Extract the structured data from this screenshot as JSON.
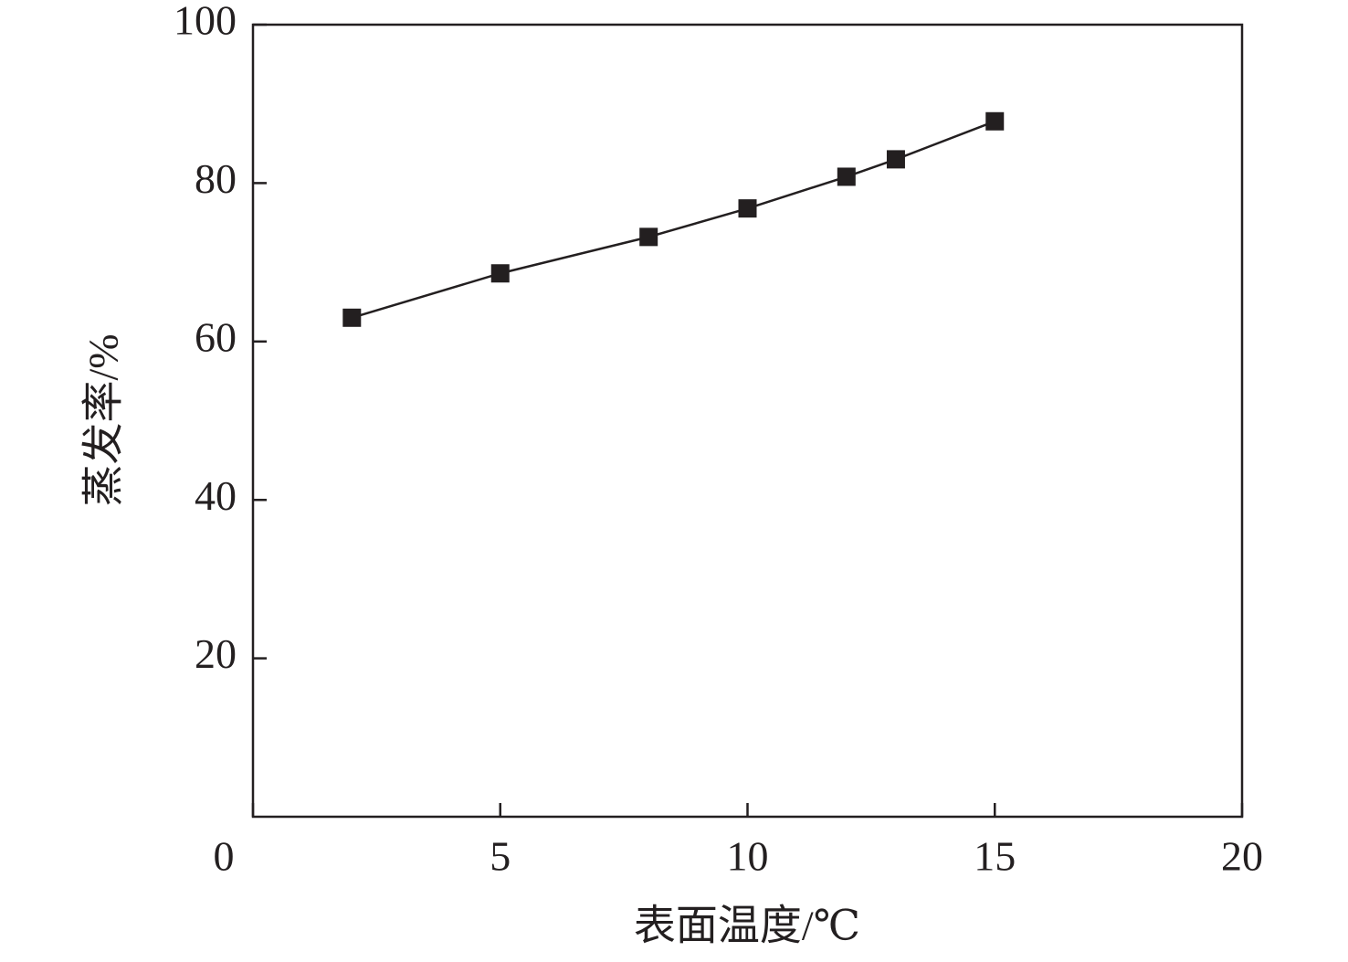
{
  "chart_data": {
    "type": "line",
    "x_label": "表面温度/℃",
    "y_label": "蒸发率/%",
    "x": [
      2,
      5,
      8,
      10,
      12,
      13,
      15
    ],
    "series": [
      {
        "color": "#231f20",
        "values": [
          63,
          68.6,
          73.2,
          76.8,
          80.8,
          83,
          87.8
        ]
      }
    ],
    "xlim": [
      0,
      20
    ],
    "xticks": [
      0,
      5,
      10,
      15,
      20
    ],
    "ylim": [
      0,
      100
    ],
    "yticks": [
      20,
      40,
      60,
      80,
      100
    ],
    "grid": false,
    "marker": "square"
  }
}
